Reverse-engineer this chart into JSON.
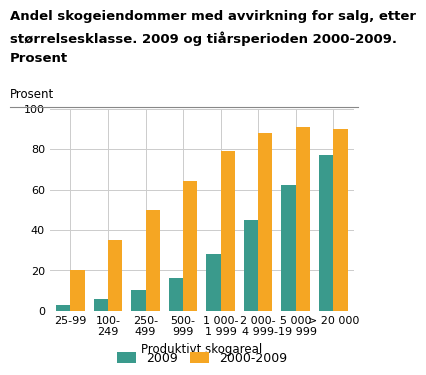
{
  "title_line1": "Andel skogeiendommer med avvirkning for salg, etter",
  "title_line2": "størrelsesklasse. 2009 og tiårsperioden 2000-2009.",
  "title_line3": "Prosent",
  "xlabel": "Produktivt skogareal",
  "ylabel": "Prosent",
  "categories": [
    "25-99",
    "100-\n249",
    "250-\n499",
    "500-\n999",
    "1 000-\n1 999",
    "2 000-\n4 999",
    "5 000\n-19 999",
    "> 20 000"
  ],
  "values_2009": [
    3,
    6,
    10,
    16,
    28,
    45,
    62,
    77
  ],
  "values_2000_2009": [
    20,
    35,
    50,
    64,
    79,
    88,
    91,
    90
  ],
  "color_2009": "#3a9a8c",
  "color_2000_2009": "#f5a623",
  "ylim": [
    0,
    100
  ],
  "yticks": [
    0,
    20,
    40,
    60,
    80,
    100
  ],
  "legend_labels": [
    "2009",
    "2000-2009"
  ],
  "bar_width": 0.38,
  "background_color": "#ffffff",
  "grid_color": "#cccccc",
  "title_fontsize": 9.5,
  "axis_fontsize": 8.5,
  "tick_fontsize": 8,
  "legend_fontsize": 9
}
